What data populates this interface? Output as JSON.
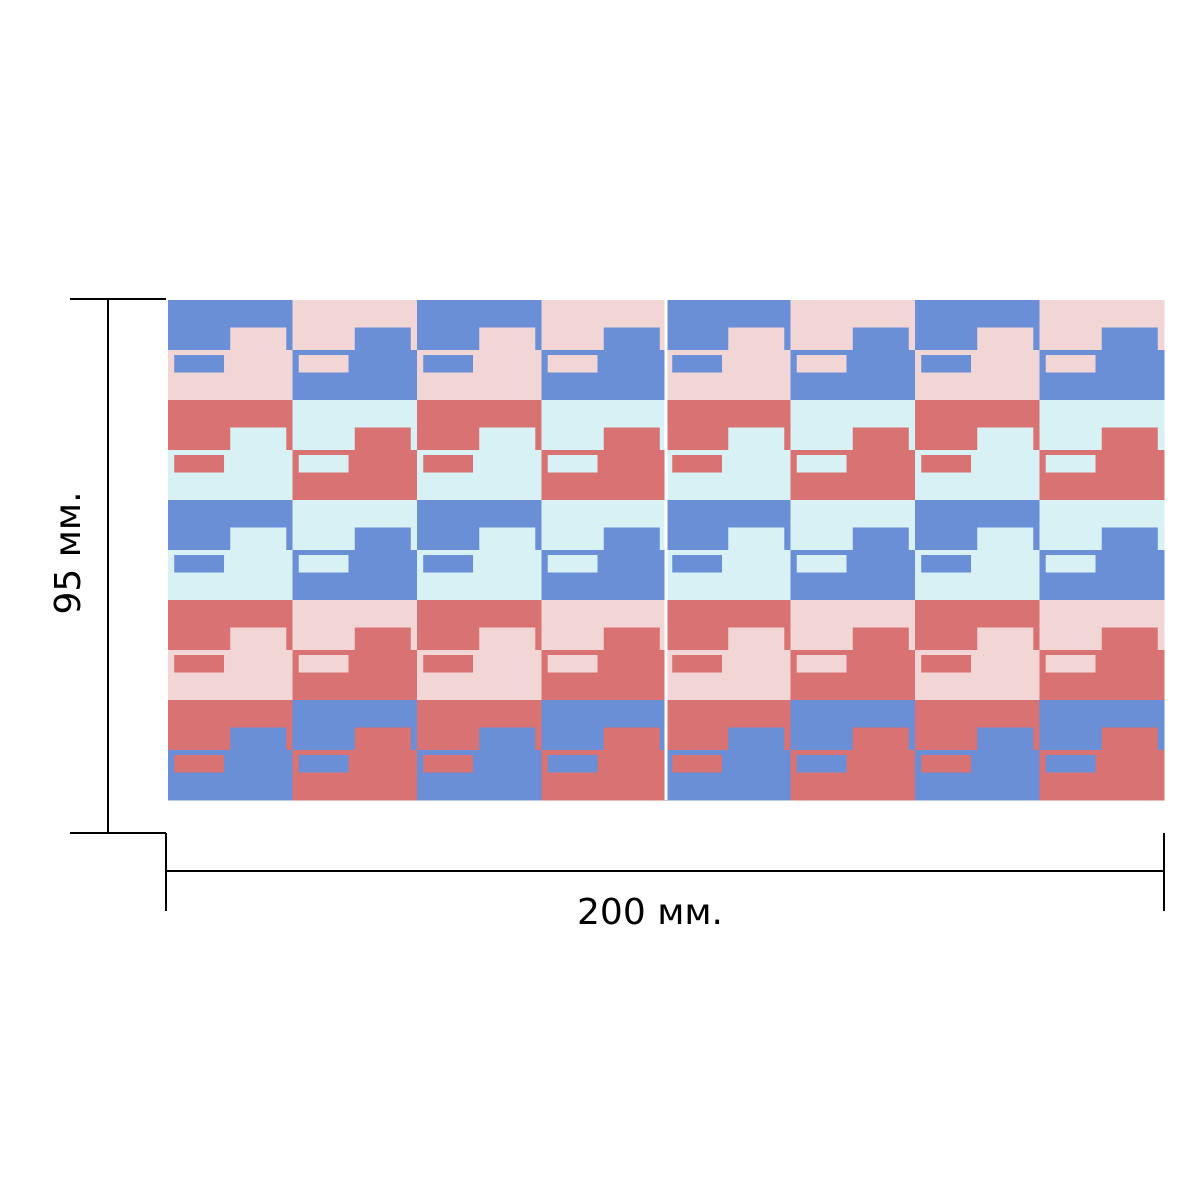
{
  "dimensions": {
    "width_label": "200 мм.",
    "height_label": "95 мм."
  },
  "colors": {
    "blue": "#6b8fd6",
    "pink": "#f2d6d6",
    "red": "#d97272",
    "light_blue": "#d8f1f4",
    "line": "#000000",
    "seam": "#ffffff"
  },
  "pattern": {
    "panels": 2,
    "columns_per_panel": 4,
    "rows": 10,
    "row_colors": [
      "blue",
      "pink",
      "red",
      "light_blue",
      "blue",
      "light_blue",
      "red",
      "pink",
      "red",
      "blue"
    ],
    "alt_colors": [
      "pink",
      "blue",
      "light_blue",
      "red",
      "light_blue",
      "blue",
      "pink",
      "red",
      "blue",
      "red"
    ]
  }
}
